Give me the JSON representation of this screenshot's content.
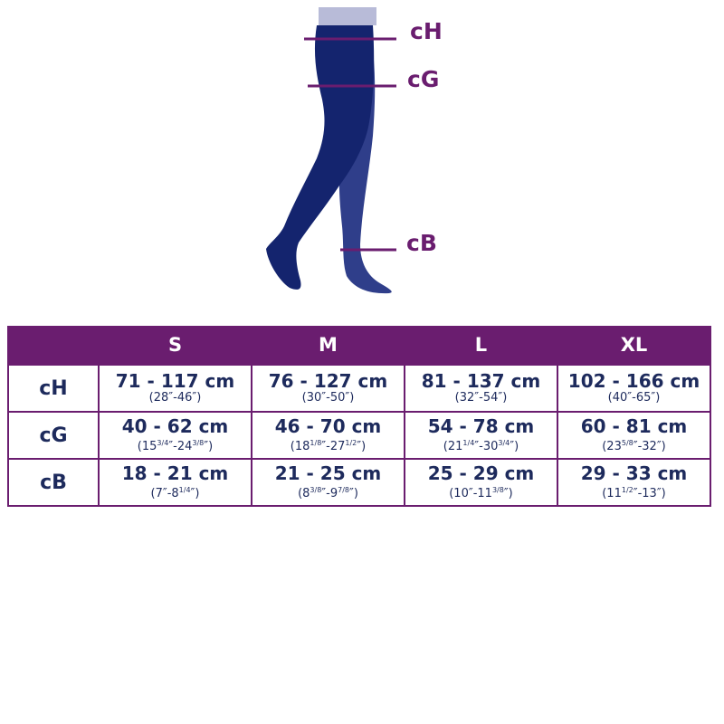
{
  "illustration": {
    "colors": {
      "front_leg": "#14246e",
      "back_leg": "#2f3e8a",
      "waistband": "#b8bbd8",
      "measure_line": "#6a1d6f"
    },
    "labels": [
      "cH",
      "cG",
      "cB"
    ]
  },
  "table": {
    "header_color": "#6a1d6f",
    "text_color": "#1d2a5c",
    "columns": [
      "",
      "S",
      "M",
      "L",
      "XL"
    ],
    "rows": [
      {
        "label": "cH",
        "cells": [
          {
            "cm": "71 - 117 cm",
            "imperial": [
              "(28″-46″)"
            ]
          },
          {
            "cm": "76 - 127 cm",
            "imperial": [
              "(30″-50″)"
            ]
          },
          {
            "cm": "81 - 137 cm",
            "imperial": [
              "(32″-54″)"
            ]
          },
          {
            "cm": "102 - 166 cm",
            "imperial": [
              "(40″-65″)"
            ]
          }
        ]
      },
      {
        "label": "cG",
        "cells": [
          {
            "cm": "40 - 62 cm",
            "imperial": [
              "(15",
              "3/4",
              "″-24",
              "3/8",
              "″)"
            ]
          },
          {
            "cm": "46 - 70 cm",
            "imperial": [
              "(18",
              "1/8",
              "″-27",
              "1/2",
              "″)"
            ]
          },
          {
            "cm": "54 - 78 cm",
            "imperial": [
              "(21",
              "1/4",
              "″-30",
              "3/4",
              "″)"
            ]
          },
          {
            "cm": "60 - 81 cm",
            "imperial": [
              "(23",
              "5/8",
              "″-32″)"
            ]
          }
        ]
      },
      {
        "label": "cB",
        "cells": [
          {
            "cm": "18 - 21 cm",
            "imperial": [
              "(7″-8",
              "1/4",
              "″)"
            ]
          },
          {
            "cm": "21 - 25 cm",
            "imperial": [
              "(8",
              "3/8",
              "″-9",
              "7/8",
              "″)"
            ]
          },
          {
            "cm": "25 - 29 cm",
            "imperial": [
              "(10″-11",
              "3/8",
              "″)"
            ]
          },
          {
            "cm": "29 - 33 cm",
            "imperial": [
              "(11",
              "1/2",
              "″-13″)"
            ]
          }
        ]
      }
    ]
  }
}
